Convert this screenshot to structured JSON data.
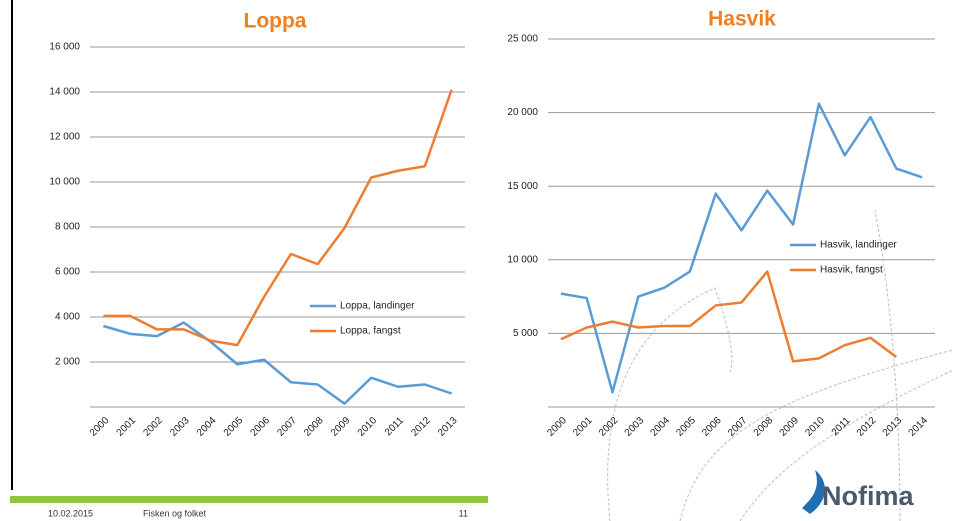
{
  "chart_data": [
    {
      "type": "line",
      "title": "Loppa",
      "categories": [
        "2000",
        "2001",
        "2002",
        "2003",
        "2004",
        "2005",
        "2006",
        "2007",
        "2008",
        "2009",
        "2010",
        "2011",
        "2012",
        "2013"
      ],
      "series": [
        {
          "name": "Loppa, landinger",
          "color": "#5b9bd5",
          "values": [
            3600,
            3250,
            3150,
            3750,
            2900,
            1900,
            2100,
            1100,
            1000,
            150,
            1300,
            900,
            1000,
            600
          ]
        },
        {
          "name": "Loppa, fangst",
          "color": "#ed7d31",
          "values": [
            4050,
            4050,
            3450,
            3450,
            2950,
            2750,
            4900,
            6800,
            6350,
            7950,
            10200,
            10500,
            10700,
            14100
          ]
        }
      ],
      "ylim": [
        0,
        16000
      ],
      "yticks": [
        {
          "value": 2000,
          "label": "2 000"
        },
        {
          "value": 4000,
          "label": "4 000"
        },
        {
          "value": 6000,
          "label": "6 000"
        },
        {
          "value": 8000,
          "label": "8 000"
        },
        {
          "value": 10000,
          "label": "10 000"
        },
        {
          "value": 12000,
          "label": "12 000"
        },
        {
          "value": 14000,
          "label": "14 000"
        },
        {
          "value": 16000,
          "label": "16 000"
        }
      ],
      "grid": true,
      "legend": "right"
    },
    {
      "type": "line",
      "title": "Hasvik",
      "categories": [
        "2000",
        "2001",
        "2002",
        "2003",
        "2004",
        "2005",
        "2006",
        "2007",
        "2008",
        "2009",
        "2010",
        "2011",
        "2012",
        "2013",
        "2014"
      ],
      "series": [
        {
          "name": "Hasvik, landinger",
          "color": "#5b9bd5",
          "values": [
            7700,
            7400,
            1000,
            7500,
            8100,
            9200,
            14500,
            12000,
            14700,
            12400,
            20600,
            17100,
            19700,
            16200,
            15600
          ]
        },
        {
          "name": "Hasvik, fangst",
          "color": "#ed7d31",
          "values": [
            4600,
            5400,
            5800,
            5400,
            5500,
            5500,
            6900,
            7100,
            9200,
            3100,
            3300,
            4200,
            4700,
            3400,
            null
          ]
        }
      ],
      "ylim": [
        0,
        25000
      ],
      "yticks": [
        {
          "value": 5000,
          "label": "5 000"
        },
        {
          "value": 10000,
          "label": "10 000"
        },
        {
          "value": 15000,
          "label": "15 000"
        },
        {
          "value": 20000,
          "label": "20 000"
        },
        {
          "value": 25000,
          "label": "25 000"
        }
      ],
      "grid": true,
      "legend": "right"
    }
  ],
  "footer": {
    "date": "10.02.2015",
    "text": "Fisken og folket",
    "page": "11",
    "logo": "Nofima"
  }
}
